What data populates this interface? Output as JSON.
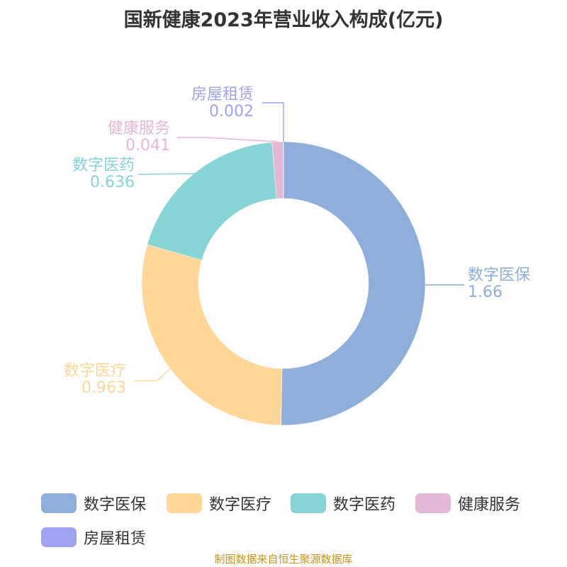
{
  "chart_data": {
    "type": "pie",
    "title": "国新健康2023年营业收入构成(亿元)",
    "categories": [
      "数字医保",
      "数字医疗",
      "数字医药",
      "健康服务",
      "房屋租赁"
    ],
    "values": [
      1.66,
      0.963,
      0.636,
      0.041,
      0.002
    ],
    "value_labels": [
      "1.66",
      "0.963",
      "0.636",
      "0.041",
      "0.002"
    ],
    "colors": [
      "#8eaedb",
      "#ffd899",
      "#86d4d6",
      "#e6b8d8",
      "#a0a3f2"
    ],
    "donut": true,
    "legend": "bottom"
  },
  "footer": "制图数据来自恒生聚源数据库"
}
